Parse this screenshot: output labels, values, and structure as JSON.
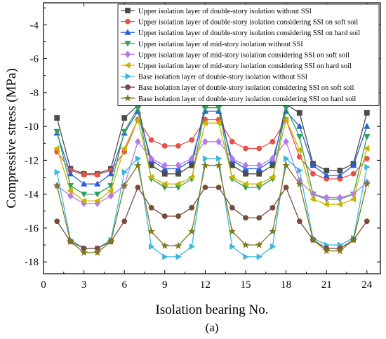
{
  "chart_data": {
    "type": "line",
    "xlabel": "Isolation bearing No.",
    "ylabel": "Compressive stress (MPa)",
    "caption": "(a)",
    "xlim": [
      0,
      25
    ],
    "ylim": [
      -18.7,
      -2.7
    ],
    "xticks": [
      0,
      3,
      6,
      9,
      12,
      15,
      18,
      21,
      24
    ],
    "yticks": [
      -18,
      -16,
      -14,
      -12,
      -10,
      -8,
      -6,
      -4
    ],
    "legend_position": "top-right",
    "x": [
      1,
      2,
      3,
      4,
      5,
      6,
      7,
      8,
      9,
      10,
      11,
      12,
      13,
      14,
      15,
      16,
      17,
      18,
      19,
      20,
      21,
      22,
      23,
      24
    ],
    "series": [
      {
        "name": "Upper isolation layer of double-story isolation without SSI",
        "color": "#4b4b4b",
        "marker": "square",
        "values": [
          -9.5,
          -12.5,
          -12.8,
          -12.8,
          -12.5,
          -9.5,
          -8.75,
          -12.3,
          -12.8,
          -12.8,
          -12.3,
          -8.75,
          -8.7,
          -12.3,
          -12.8,
          -12.8,
          -12.3,
          -8.7,
          -9.2,
          -12.2,
          -12.6,
          -12.6,
          -12.2,
          -9.2
        ]
      },
      {
        "name": "Upper isolation layer of double-story isolation considering SSI on soft soil",
        "color": "#e8514a",
        "marker": "circle",
        "values": [
          -11.5,
          -12.6,
          -12.85,
          -12.85,
          -12.6,
          -11.5,
          -9.6,
          -10.8,
          -11.15,
          -11.15,
          -10.8,
          -9.6,
          -9.6,
          -10.9,
          -11.3,
          -11.3,
          -10.9,
          -9.6,
          -11.8,
          -12.8,
          -13.1,
          -13.1,
          -12.8,
          -11.9
        ]
      },
      {
        "name": "Upper isolation layer of double-story isolation considering SSI on hard soil",
        "color": "#2a5fd6",
        "marker": "triangle-up",
        "values": [
          -10.4,
          -12.8,
          -13.4,
          -13.4,
          -12.8,
          -10.4,
          -9.1,
          -12.0,
          -12.5,
          -12.5,
          -12.0,
          -9.1,
          -9.1,
          -12.0,
          -12.5,
          -12.5,
          -12.0,
          -9.1,
          -10.0,
          -12.3,
          -12.9,
          -12.9,
          -12.3,
          -10.0
        ]
      },
      {
        "name": "Upper isolation layer of mid-story isolation without SSI",
        "color": "#2fa05a",
        "marker": "triangle-down",
        "values": [
          -10.3,
          -13.5,
          -14.0,
          -14.0,
          -13.5,
          -10.3,
          -8.9,
          -13.1,
          -13.6,
          -13.6,
          -13.1,
          -8.9,
          -8.9,
          -13.1,
          -13.6,
          -13.6,
          -13.1,
          -8.9,
          -10.6,
          -14.0,
          -14.3,
          -14.3,
          -14.0,
          -10.6
        ]
      },
      {
        "name": "Upper isolation layer of mid-story isolation considering SSI on soft soil",
        "color": "#b57be6",
        "marker": "diamond",
        "values": [
          -13.5,
          -14.1,
          -14.55,
          -14.55,
          -14.1,
          -13.5,
          -10.9,
          -11.9,
          -12.3,
          -12.3,
          -11.9,
          -10.9,
          -10.9,
          -11.9,
          -12.3,
          -12.3,
          -11.9,
          -10.9,
          -13.2,
          -14.0,
          -14.2,
          -14.2,
          -14.0,
          -13.3
        ]
      },
      {
        "name": "Upper isolation layer of mid-story isolation considering SSI on hard soil",
        "color": "#c9b200",
        "marker": "triangle-left",
        "values": [
          -11.3,
          -13.8,
          -14.4,
          -14.4,
          -13.8,
          -11.3,
          -9.6,
          -13.0,
          -13.4,
          -13.4,
          -13.0,
          -9.8,
          -9.8,
          -13.0,
          -13.4,
          -13.4,
          -13.0,
          -9.6,
          -11.4,
          -14.3,
          -14.6,
          -14.6,
          -14.3,
          -11.3
        ]
      },
      {
        "name": "Base isolation layer of  double-story isolation without SSI",
        "color": "#3cb8d8",
        "marker": "triangle-right",
        "values": [
          -12.7,
          -16.7,
          -17.2,
          -17.2,
          -16.7,
          -12.7,
          -11.9,
          -17.1,
          -17.7,
          -17.7,
          -17.1,
          -11.9,
          -11.9,
          -17.1,
          -17.7,
          -17.7,
          -17.1,
          -11.9,
          -12.6,
          -16.6,
          -17.0,
          -17.0,
          -16.6,
          -12.4
        ]
      },
      {
        "name": "Base isolation layer of double-story isolation considering SSI on soft soil",
        "color": "#7b4a3c",
        "marker": "circle",
        "values": [
          -15.6,
          -16.8,
          -17.2,
          -17.2,
          -16.8,
          -15.6,
          -13.6,
          -14.8,
          -15.3,
          -15.3,
          -14.8,
          -13.6,
          -13.6,
          -14.8,
          -15.4,
          -15.4,
          -14.8,
          -13.6,
          -15.6,
          -16.7,
          -17.2,
          -17.2,
          -16.7,
          -15.6
        ]
      },
      {
        "name": "Base isolation layer of double-story isolation considering SSI on hard soil",
        "color": "#7d7a1c",
        "marker": "star",
        "values": [
          -13.5,
          -16.8,
          -17.45,
          -17.45,
          -16.8,
          -13.5,
          -12.3,
          -16.2,
          -17.05,
          -17.05,
          -16.2,
          -12.3,
          -12.3,
          -16.2,
          -17.0,
          -17.0,
          -16.2,
          -12.3,
          -13.4,
          -16.7,
          -17.35,
          -17.35,
          -16.7,
          -13.4
        ]
      }
    ]
  }
}
